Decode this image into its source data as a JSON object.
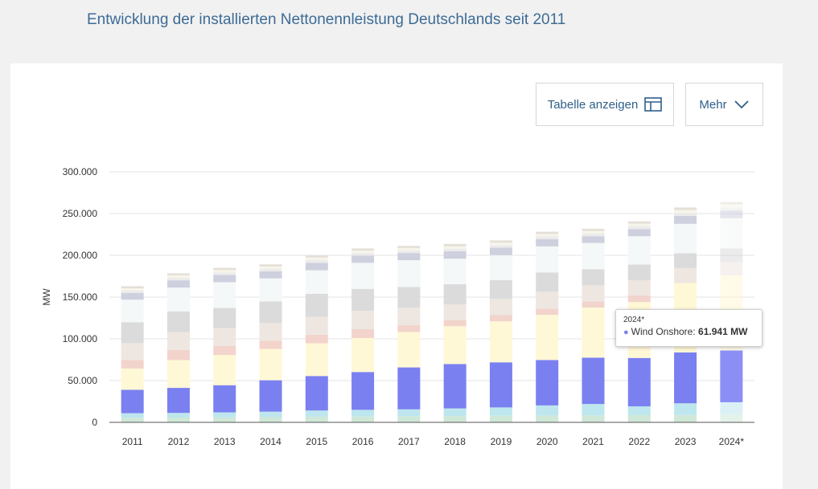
{
  "page": {
    "title": "Entwicklung der installierten Nettonennleistung Deutschlands seit 2011"
  },
  "toolbar": {
    "table_button_label": "Tabelle anzeigen",
    "table_icon": "table-icon",
    "more_button_label": "Mehr",
    "more_icon": "chevron-down-icon"
  },
  "tooltip": {
    "year": "2024*",
    "series_name": "Wind Onshore:",
    "value": "61.941 MW",
    "color": "#7b80f0"
  },
  "chart_data": {
    "type": "bar",
    "stacked": true,
    "ylabel": "MW",
    "ylim": [
      0,
      300000
    ],
    "yticks": [
      0,
      50000,
      100000,
      150000,
      200000,
      250000,
      300000
    ],
    "ytick_labels": [
      "0",
      "50.000",
      "100.000",
      "150.000",
      "200.000",
      "250.000",
      "300.000"
    ],
    "categories": [
      "2011",
      "2012",
      "2013",
      "2014",
      "2015",
      "2016",
      "2017",
      "2018",
      "2019",
      "2020",
      "2021",
      "2022",
      "2023",
      "2024*"
    ],
    "highlight_category": "2024*",
    "highlight_series": "Wind Onshore",
    "grid": true,
    "series": [
      {
        "color": "#cfe8d8",
        "values": [
          5500,
          5800,
          6000,
          6300,
          6800,
          7000,
          7300,
          7600,
          7900,
          8100,
          8500,
          8700,
          8900,
          9100
        ]
      },
      {
        "color": "#bde6ee",
        "values": [
          5500,
          5500,
          6000,
          6500,
          7400,
          8000,
          8300,
          9100,
          10000,
          12200,
          13500,
          10500,
          13900,
          15000
        ]
      },
      {
        "name": "Wind Onshore",
        "color": "#7b80f0",
        "values": [
          28000,
          30000,
          32500,
          37600,
          41300,
          45300,
          50200,
          53200,
          54000,
          54400,
          55500,
          57900,
          61000,
          61941
        ]
      },
      {
        "color": "#fff8d6",
        "values": [
          25500,
          33200,
          36100,
          37500,
          39200,
          40700,
          42300,
          45200,
          49000,
          54000,
          60000,
          67000,
          83000,
          90000
        ]
      },
      {
        "color": "#f2d4cc",
        "values": [
          10300,
          12100,
          11000,
          10000,
          10300,
          10600,
          8500,
          7400,
          7700,
          7400,
          7400,
          8000,
          0,
          0
        ]
      },
      {
        "color": "#eee6e1",
        "values": [
          20000,
          21300,
          21300,
          21000,
          21300,
          22000,
          20700,
          18900,
          19200,
          20300,
          19300,
          18000,
          18000,
          15900
        ]
      },
      {
        "color": "#dbdbdb",
        "values": [
          25100,
          24900,
          24200,
          25900,
          27700,
          26300,
          24800,
          24100,
          22400,
          23100,
          19300,
          18900,
          17700,
          16500
        ]
      },
      {
        "color": "#f4f8f8",
        "values": [
          27000,
          28600,
          30700,
          27600,
          28100,
          31100,
          32100,
          30500,
          30000,
          31200,
          31300,
          33900,
          35200,
          36000
        ]
      },
      {
        "color": "#cfd0de",
        "values": [
          7900,
          8700,
          8600,
          8500,
          9000,
          8700,
          8600,
          8800,
          8900,
          8700,
          8100,
          8600,
          9600,
          9400
        ]
      },
      {
        "color": "#ebebeb",
        "values": [
          3000,
          3000,
          3000,
          3000,
          3200,
          3000,
          3000,
          3100,
          3100,
          3200,
          3200,
          3200,
          3500,
          3500
        ]
      },
      {
        "color": "#f7f4ea",
        "values": [
          2800,
          3000,
          3000,
          2800,
          3000,
          3000,
          2900,
          3000,
          3000,
          3000,
          3100,
          3200,
          3500,
          3500
        ]
      },
      {
        "color": "#e4e0d8",
        "values": [
          2400,
          2400,
          2600,
          2500,
          2500,
          2600,
          2600,
          2700,
          2700,
          2700,
          2600,
          2800,
          3000,
          3000
        ]
      }
    ]
  }
}
